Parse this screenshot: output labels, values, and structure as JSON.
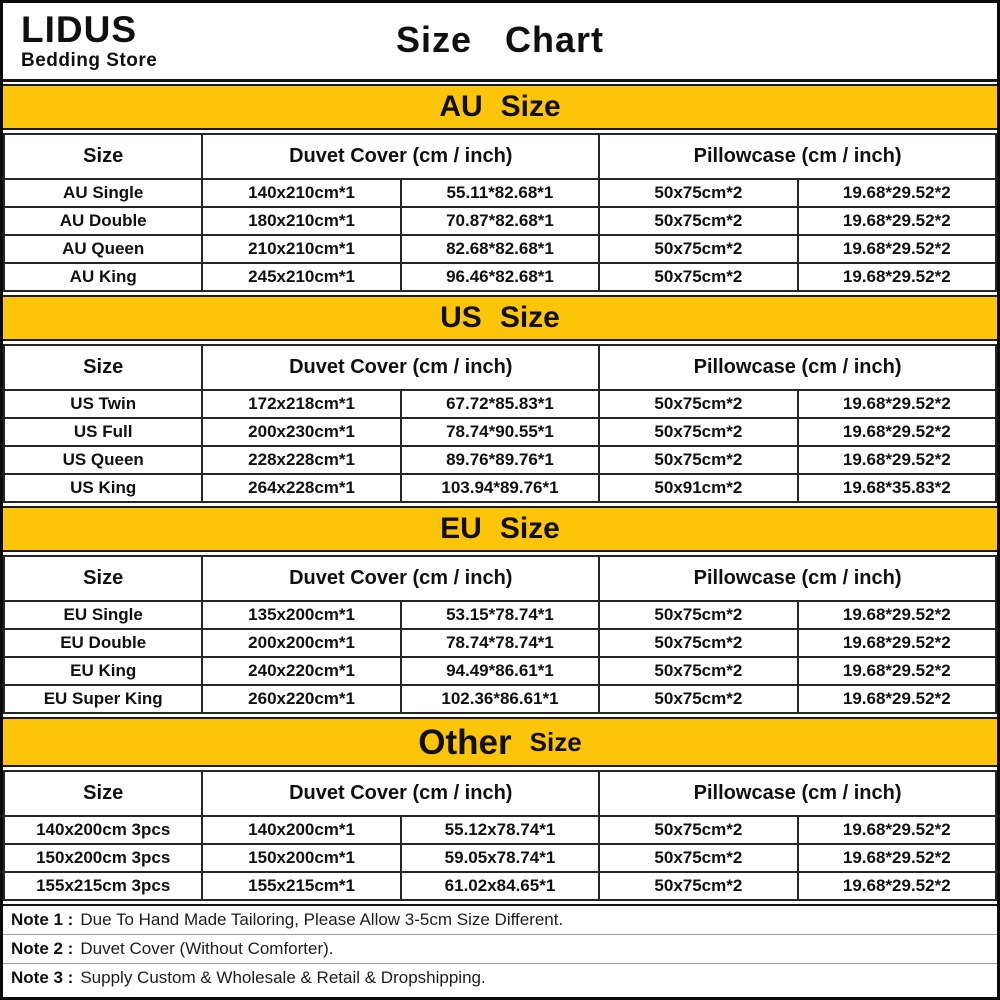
{
  "store": {
    "name": "LIDUS",
    "tagline": "Bedding Store"
  },
  "title": "Size   Chart",
  "colors": {
    "banner_yellow": "#FCC50A",
    "border_black": "#141414"
  },
  "columns": {
    "size": "Size",
    "duvet": "Duvet Cover (cm / inch)",
    "pillow": "Pillowcase (cm / inch)"
  },
  "sections": [
    {
      "region": "AU",
      "word": "Size",
      "style": "default",
      "rows": [
        [
          "AU Single",
          "140x210cm*1",
          "55.11*82.68*1",
          "50x75cm*2",
          "19.68*29.52*2"
        ],
        [
          "AU Double",
          "180x210cm*1",
          "70.87*82.68*1",
          "50x75cm*2",
          "19.68*29.52*2"
        ],
        [
          "AU Queen",
          "210x210cm*1",
          "82.68*82.68*1",
          "50x75cm*2",
          "19.68*29.52*2"
        ],
        [
          "AU King",
          "245x210cm*1",
          "96.46*82.68*1",
          "50x75cm*2",
          "19.68*29.52*2"
        ]
      ]
    },
    {
      "region": "US",
      "word": "Size",
      "style": "default",
      "rows": [
        [
          "US Twin",
          "172x218cm*1",
          "67.72*85.83*1",
          "50x75cm*2",
          "19.68*29.52*2"
        ],
        [
          "US Full",
          "200x230cm*1",
          "78.74*90.55*1",
          "50x75cm*2",
          "19.68*29.52*2"
        ],
        [
          "US Queen",
          "228x228cm*1",
          "89.76*89.76*1",
          "50x75cm*2",
          "19.68*29.52*2"
        ],
        [
          "US King",
          "264x228cm*1",
          "103.94*89.76*1",
          "50x91cm*2",
          "19.68*35.83*2"
        ]
      ]
    },
    {
      "region": "EU",
      "word": "Size",
      "style": "default",
      "rows": [
        [
          "EU Single",
          "135x200cm*1",
          "53.15*78.74*1",
          "50x75cm*2",
          "19.68*29.52*2"
        ],
        [
          "EU Double",
          "200x200cm*1",
          "78.74*78.74*1",
          "50x75cm*2",
          "19.68*29.52*2"
        ],
        [
          "EU King",
          "240x220cm*1",
          "94.49*86.61*1",
          "50x75cm*2",
          "19.68*29.52*2"
        ],
        [
          "EU Super King",
          "260x220cm*1",
          "102.36*86.61*1",
          "50x75cm*2",
          "19.68*29.52*2"
        ]
      ]
    },
    {
      "region": "Other",
      "word": "Size",
      "style": "other",
      "rows": [
        [
          "140x200cm 3pcs",
          "140x200cm*1",
          "55.12x78.74*1",
          "50x75cm*2",
          "19.68*29.52*2"
        ],
        [
          "150x200cm 3pcs",
          "150x200cm*1",
          "59.05x78.74*1",
          "50x75cm*2",
          "19.68*29.52*2"
        ],
        [
          "155x215cm 3pcs",
          "155x215cm*1",
          "61.02x84.65*1",
          "50x75cm*2",
          "19.68*29.52*2"
        ]
      ]
    }
  ],
  "notes": [
    {
      "label": "Note 1 :",
      "text": "Due To Hand Made Tailoring, Please Allow 3-5cm Size Different."
    },
    {
      "label": "Note 2 :",
      "text": "Duvet Cover (Without Comforter)."
    },
    {
      "label": "Note 3 :",
      "text": "Supply Custom & Wholesale & Retail & Dropshipping."
    }
  ]
}
